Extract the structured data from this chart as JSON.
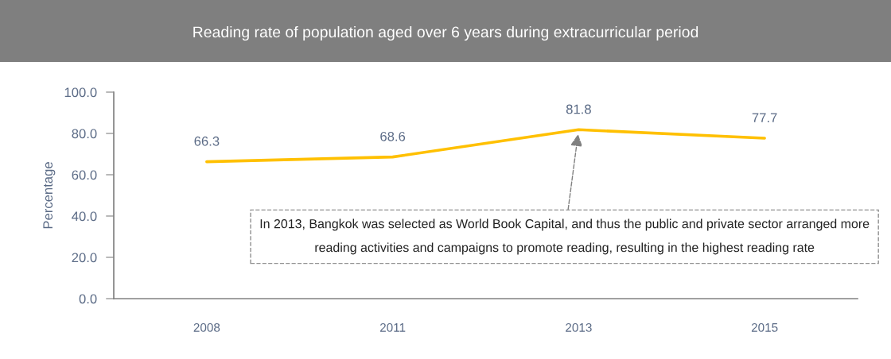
{
  "chart_data": {
    "type": "line",
    "title": "Reading rate of population aged over 6 years during extracurricular period",
    "ylabel": "Percentage",
    "categories": [
      "2008",
      "2011",
      "2013",
      "2015"
    ],
    "series": [
      {
        "color": "#ffc000",
        "values": [
          66.3,
          68.6,
          81.8,
          77.7
        ]
      }
    ],
    "ylim": [
      0,
      100
    ],
    "yticks": [
      {
        "value": 0,
        "label": "0.0"
      },
      {
        "value": 20,
        "label": "20.0"
      },
      {
        "value": 40,
        "label": "40.0"
      },
      {
        "value": 60,
        "label": "60.0"
      },
      {
        "value": 80,
        "label": "80.0"
      },
      {
        "value": 100,
        "label": "100.0"
      }
    ],
    "data_labels": true,
    "grid": false,
    "legend": false,
    "marker": "none",
    "line_style": "solid",
    "annotations": [
      {
        "text": "In 2013, Bangkok was selected as World Book Capital, and thus the public and private sector arranged more reading activities and campaigns to promote reading, resulting in the highest reading rate",
        "x": "2013",
        "y": 81.8
      }
    ]
  }
}
